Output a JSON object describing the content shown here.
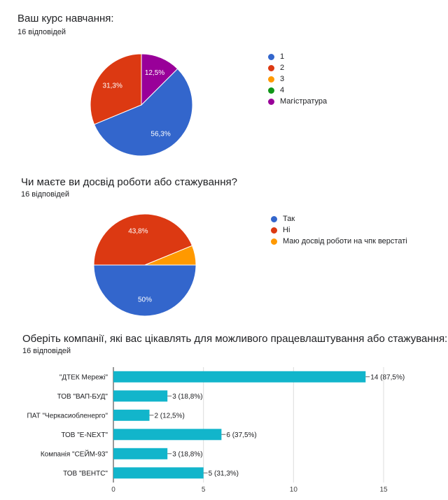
{
  "questions": [
    {
      "title": "Ваш курс навчання:",
      "responses": "16 відповідей"
    },
    {
      "title": "Чи маєте ви досвід роботи або стажування?",
      "responses": "16 відповідей"
    },
    {
      "title": "Оберіть компанії, які вас цікавлять для можливого працевлаштування або стажування:",
      "responses": "16 відповідей"
    }
  ],
  "chart_data": [
    {
      "type": "pie",
      "categories": [
        "1",
        "2",
        "3",
        "4",
        "Магістратура"
      ],
      "values": [
        56.3,
        31.3,
        0,
        0,
        12.5
      ],
      "data_labels": [
        "56,3%",
        "31,3%",
        "",
        "",
        "12,5%"
      ],
      "colors": [
        "#3366cc",
        "#dc3912",
        "#ff9900",
        "#109618",
        "#990099"
      ],
      "legend": "right"
    },
    {
      "type": "pie",
      "categories": [
        "Так",
        "Ні",
        "Маю досвід роботи на чпк верстаті"
      ],
      "values": [
        50,
        43.8,
        6.2
      ],
      "data_labels": [
        "50%",
        "43,8%",
        ""
      ],
      "colors": [
        "#3366cc",
        "#dc3912",
        "#ff9900"
      ],
      "legend": "right"
    },
    {
      "type": "bar",
      "orientation": "horizontal",
      "categories": [
        "\"ДТЕК Мережі\"",
        "ТОВ \"ВАП-БУД\"",
        "ПАТ \"Черкасиобленерго\"",
        "ТОВ \"E-NEXT\"",
        "Компанія \"СЕЙМ-93\"",
        "ТОВ \"ВЕНТС\""
      ],
      "values": [
        14,
        3,
        2,
        6,
        3,
        5
      ],
      "data_labels": [
        "14 (87,5%)",
        "3 (18,8%)",
        "2 (12,5%)",
        "6 (37,5%)",
        "3 (18,8%)",
        "5 (31,3%)"
      ],
      "xlim": [
        0,
        15
      ],
      "xticks": [
        "0",
        "5",
        "10",
        "15"
      ],
      "color": "#12b5cb"
    }
  ]
}
